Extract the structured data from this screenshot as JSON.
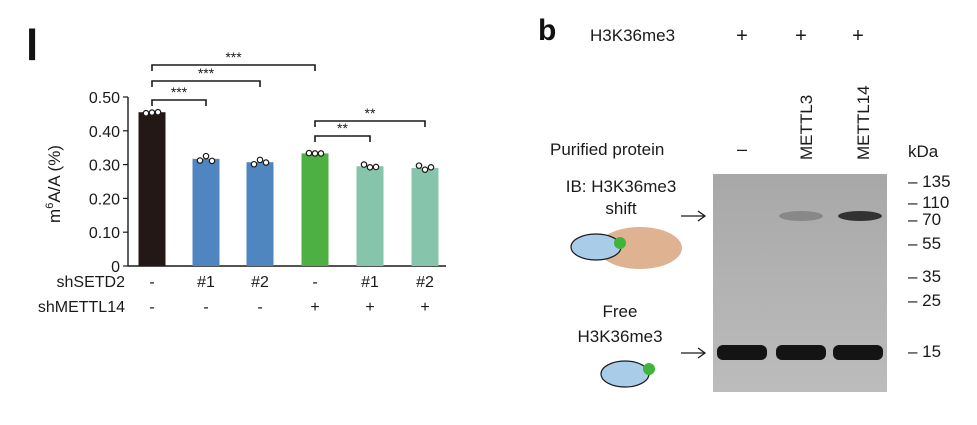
{
  "left_panel": {
    "letter": "l",
    "chart_data": {
      "type": "bar",
      "ylabel_prefix": "m",
      "ylabel_sup": "6",
      "ylabel_suffix": "A/A (%)",
      "ylim": [
        0,
        0.5
      ],
      "yticks": [
        "0",
        "0.10",
        "0.20",
        "0.30",
        "0.40",
        "0.50"
      ],
      "grid": false,
      "categories": [
        "1",
        "2",
        "3",
        "4",
        "5",
        "6"
      ],
      "values": [
        0.455,
        0.317,
        0.307,
        0.333,
        0.295,
        0.29
      ],
      "points": [
        [
          0.452,
          0.454,
          0.455
        ],
        [
          0.312,
          0.325,
          0.311
        ],
        [
          0.301,
          0.314,
          0.306
        ],
        [
          0.334,
          0.333,
          0.333
        ],
        [
          0.3,
          0.292,
          0.293
        ],
        [
          0.297,
          0.285,
          0.292
        ]
      ],
      "colors": [
        "#231815",
        "#4f86c0",
        "#4f86c0",
        "#4db042",
        "#86c5ab",
        "#86c5ab"
      ],
      "row_labels": [
        {
          "name": "shSETD2",
          "values": [
            "-",
            "#1",
            "#2",
            "-",
            "#1",
            "#2"
          ]
        },
        {
          "name": "shMETTL14",
          "values": [
            "-",
            "-",
            "-",
            "+",
            "+",
            "+"
          ]
        }
      ],
      "significance": [
        {
          "from": 1,
          "to": 2,
          "label": "***"
        },
        {
          "from": 1,
          "to": 3,
          "label": "***"
        },
        {
          "from": 1,
          "to": 4,
          "label": "***"
        },
        {
          "from": 4,
          "to": 5,
          "label": "**"
        },
        {
          "from": 4,
          "to": 6,
          "label": "**"
        }
      ]
    }
  },
  "right_panel": {
    "letter": "b",
    "h3k36_label": "H3K36me3",
    "h3k36_values": [
      "+",
      "+",
      "+"
    ],
    "lane_labels": [
      "METTL3",
      "METTL14"
    ],
    "purified_label": "Purified protein",
    "purified_value": "–",
    "ib_label": "IB: H3K36me3",
    "shift_label": "shift",
    "free_label_1": "Free",
    "free_label_2": "H3K36me3",
    "kda_label": "kDa",
    "markers": [
      "135",
      "110",
      "70",
      "55",
      "35",
      "25",
      "15"
    ],
    "band_intensity": {
      "shift": [
        0,
        0.25,
        0.85
      ],
      "free": [
        1,
        1,
        1
      ]
    }
  }
}
